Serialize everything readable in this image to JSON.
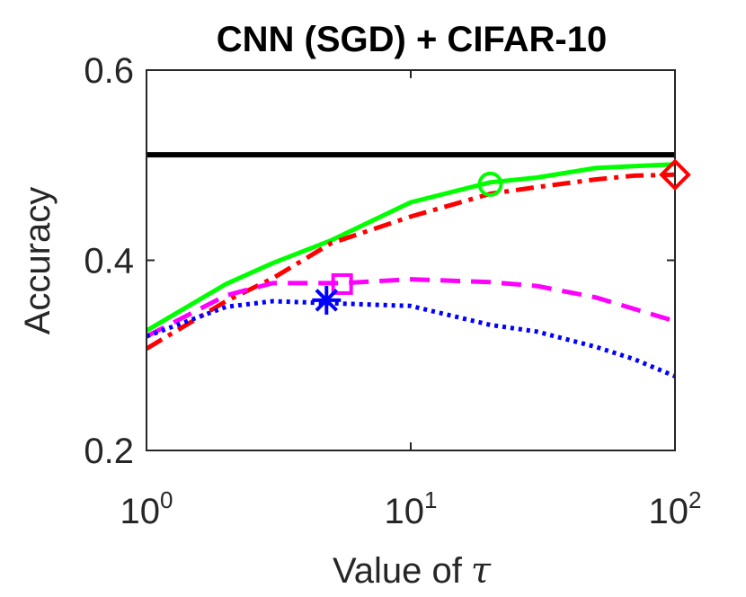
{
  "chart_data": {
    "type": "line",
    "title": "CNN (SGD) + CIFAR-10",
    "xlabel": "Value of",
    "xlabel_symbol": "τ",
    "ylabel": "Accuracy",
    "xscale": "log",
    "xlim": [
      1,
      100
    ],
    "ylim": [
      0.2,
      0.6
    ],
    "grid": false,
    "xticks": [
      {
        "value": 1,
        "base": "10",
        "exp": "0"
      },
      {
        "value": 10,
        "base": "10",
        "exp": "1"
      },
      {
        "value": 100,
        "base": "10",
        "exp": "2"
      }
    ],
    "yticks": [
      {
        "value": 0.2,
        "label": "0.2"
      },
      {
        "value": 0.4,
        "label": "0.4"
      },
      {
        "value": 0.6,
        "label": "0.6"
      }
    ],
    "series": [
      {
        "name": "baseline",
        "color": "#000000",
        "style": "solid",
        "x": [
          1,
          100
        ],
        "y": [
          0.511,
          0.511
        ],
        "marker": null
      },
      {
        "name": "green-solid",
        "color": "#00ff00",
        "style": "solid",
        "x": [
          1,
          2,
          3,
          5,
          10,
          20,
          30,
          50,
          70,
          100
        ],
        "y": [
          0.326,
          0.375,
          0.397,
          0.421,
          0.461,
          0.482,
          0.487,
          0.497,
          0.499,
          0.501
        ],
        "marker": {
          "shape": "circle",
          "x": 20,
          "y": 0.48
        }
      },
      {
        "name": "red-dashdot",
        "color": "#ff0000",
        "style": "dashdot",
        "x": [
          1,
          2,
          3,
          5,
          10,
          20,
          30,
          50,
          70,
          100
        ],
        "y": [
          0.307,
          0.357,
          0.381,
          0.418,
          0.446,
          0.47,
          0.477,
          0.485,
          0.489,
          0.49
        ],
        "marker": {
          "shape": "diamond",
          "x": 100,
          "y": 0.49
        }
      },
      {
        "name": "magenta-dashed",
        "color": "#ff00ff",
        "style": "dashed",
        "x": [
          1,
          2,
          3,
          5.5,
          10,
          20,
          30,
          50,
          100
        ],
        "y": [
          0.32,
          0.363,
          0.376,
          0.376,
          0.38,
          0.377,
          0.373,
          0.361,
          0.336
        ],
        "marker": {
          "shape": "square",
          "x": 5.5,
          "y": 0.375
        }
      },
      {
        "name": "blue-dotted",
        "color": "#0000ff",
        "style": "dotted",
        "x": [
          1,
          2,
          3,
          4.8,
          10,
          20,
          30,
          50,
          70,
          100
        ],
        "y": [
          0.32,
          0.351,
          0.357,
          0.355,
          0.352,
          0.332,
          0.325,
          0.309,
          0.296,
          0.278
        ],
        "marker": {
          "shape": "asterisk",
          "x": 4.8,
          "y": 0.358
        }
      }
    ]
  }
}
